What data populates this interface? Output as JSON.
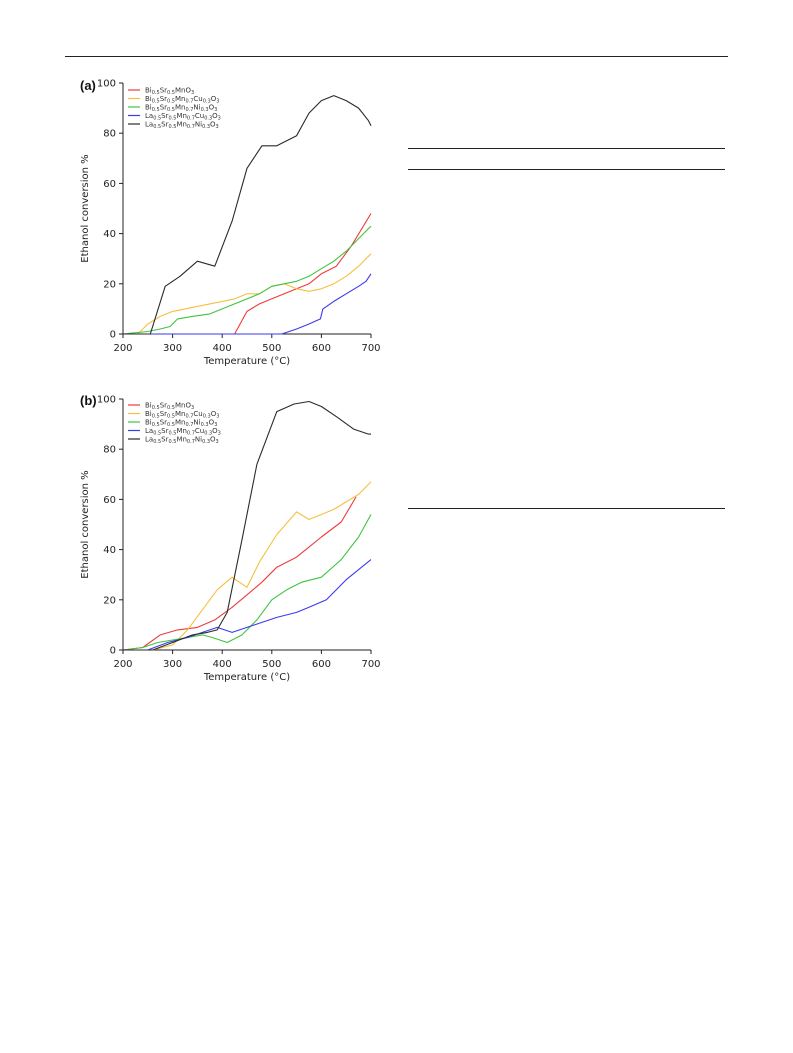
{
  "page": {
    "rules": [
      {
        "name": "header-rule"
      },
      {
        "name": "table-top-rule"
      },
      {
        "name": "table-header-rule"
      },
      {
        "name": "table-bottom-rule"
      }
    ]
  },
  "chart_data": [
    {
      "type": "line",
      "panel": "(a)",
      "xlabel": "Temperature (°C)",
      "ylabel": "Ethanol conversion %",
      "xlim": [
        200,
        700
      ],
      "ylim": [
        0,
        100
      ],
      "xticks": [
        200,
        300,
        400,
        500,
        600,
        700
      ],
      "yticks": [
        0,
        20,
        40,
        60,
        80,
        100
      ],
      "grid": false,
      "legend_position": "top-left",
      "series": [
        {
          "name": "Bi0.5Sr0.5MnO3",
          "legend": [
            [
              "Bi",
              ""
            ],
            [
              "0.5",
              "s"
            ],
            [
              "Sr",
              ""
            ],
            [
              "0.5",
              "s"
            ],
            [
              "MnO",
              ""
            ],
            [
              "3",
              "s"
            ]
          ],
          "color": "#ee3b3b",
          "x": [
            200,
            300,
            425,
            450,
            475,
            525,
            575,
            600,
            630,
            660,
            700
          ],
          "y": [
            0,
            0,
            0,
            9,
            12,
            16,
            20,
            24,
            27,
            35,
            48
          ]
        },
        {
          "name": "Bi0.5Sr0.5Mn0.7Cu0.3O3",
          "legend": [
            [
              "Bi",
              ""
            ],
            [
              "0.5",
              "s"
            ],
            [
              "Sr",
              ""
            ],
            [
              "0.5",
              "s"
            ],
            [
              "Mn",
              ""
            ],
            [
              "0.7",
              "s"
            ],
            [
              "Cu",
              ""
            ],
            [
              "0.3",
              "s"
            ],
            [
              "O",
              ""
            ],
            [
              "3",
              "s"
            ]
          ],
          "color": "#f5c040",
          "x": [
            200,
            230,
            250,
            275,
            300,
            325,
            350,
            375,
            400,
            425,
            450,
            475,
            500,
            525,
            550,
            575,
            600,
            625,
            650,
            675,
            700
          ],
          "y": [
            0,
            0,
            4,
            7,
            9,
            10,
            11,
            12,
            13,
            14,
            16,
            16,
            19,
            20,
            18,
            17,
            18,
            20,
            23,
            27,
            32
          ]
        },
        {
          "name": "Bi0.5Sr0.5Mn0.7Ni0.3O3",
          "legend": [
            [
              "Bi",
              ""
            ],
            [
              "0.5",
              "s"
            ],
            [
              "Sr",
              ""
            ],
            [
              "0.5",
              "s"
            ],
            [
              "Mn",
              ""
            ],
            [
              "0.7",
              "s"
            ],
            [
              "Ni",
              ""
            ],
            [
              "0.3",
              "s"
            ],
            [
              "O",
              ""
            ],
            [
              "3",
              "s"
            ]
          ],
          "color": "#3fc43f",
          "x": [
            200,
            250,
            275,
            295,
            310,
            340,
            375,
            400,
            425,
            450,
            475,
            500,
            525,
            550,
            575,
            600,
            625,
            650,
            675,
            700
          ],
          "y": [
            0,
            1,
            2,
            3,
            6,
            7,
            8,
            10,
            12,
            14,
            16,
            19,
            20,
            21,
            23,
            26,
            29,
            33,
            38,
            43
          ]
        },
        {
          "name": "La0.5Sr0.5Mn0.7Cu0.3O3",
          "legend": [
            [
              "La",
              ""
            ],
            [
              "0.5",
              "s"
            ],
            [
              "Sr",
              ""
            ],
            [
              "0.5",
              "s"
            ],
            [
              "Mn",
              ""
            ],
            [
              "0.7",
              "s"
            ],
            [
              "Cu",
              ""
            ],
            [
              "0.3",
              "s"
            ],
            [
              "O",
              ""
            ],
            [
              "3",
              "s"
            ]
          ],
          "color": "#3a3af0",
          "x": [
            200,
            520,
            550,
            575,
            598,
            603,
            625,
            650,
            675,
            690,
            700
          ],
          "y": [
            0,
            0,
            2,
            4,
            6,
            10,
            13,
            16,
            19,
            21,
            24
          ]
        },
        {
          "name": "La0.5Sr0.5Mn0.7Ni0.3O3",
          "legend": [
            [
              "La",
              ""
            ],
            [
              "0.5",
              "s"
            ],
            [
              "Sr",
              ""
            ],
            [
              "0.5",
              "s"
            ],
            [
              "Mn",
              ""
            ],
            [
              "0.7",
              "s"
            ],
            [
              "Ni",
              ""
            ],
            [
              "0.3",
              "s"
            ],
            [
              "O",
              ""
            ],
            [
              "3",
              "s"
            ]
          ],
          "color": "#2a2a2a",
          "x": [
            200,
            255,
            285,
            315,
            350,
            385,
            420,
            450,
            480,
            510,
            550,
            575,
            600,
            625,
            650,
            675,
            695,
            700
          ],
          "y": [
            0,
            0,
            19,
            23,
            29,
            27,
            45,
            66,
            75,
            75,
            79,
            88,
            93,
            95,
            93,
            90,
            85,
            83
          ]
        }
      ]
    },
    {
      "type": "line",
      "panel": "(b)",
      "xlabel": "Temperature (°C)",
      "ylabel": "Ethanol conversion %",
      "xlim": [
        200,
        700
      ],
      "ylim": [
        0,
        100
      ],
      "xticks": [
        200,
        300,
        400,
        500,
        600,
        700
      ],
      "yticks": [
        0,
        20,
        40,
        60,
        80,
        100
      ],
      "grid": false,
      "legend_position": "top-left",
      "series": [
        {
          "name": "Bi0.5Sr0.5MnO3",
          "legend": [
            [
              "Bi",
              ""
            ],
            [
              "0.5",
              "s"
            ],
            [
              "Sr",
              ""
            ],
            [
              "0.5",
              "s"
            ],
            [
              "MnO",
              ""
            ],
            [
              "3",
              "s"
            ]
          ],
          "color": "#ee3b3b",
          "x": [
            200,
            240,
            275,
            310,
            350,
            385,
            420,
            450,
            480,
            510,
            550,
            575,
            600,
            640,
            670
          ],
          "y": [
            0,
            1,
            6,
            8,
            9,
            12,
            17,
            22,
            27,
            33,
            37,
            41,
            45,
            51,
            61
          ]
        },
        {
          "name": "Bi0.5Sr0.5Mn0.7Cu0.3O3",
          "legend": [
            [
              "Bi",
              ""
            ],
            [
              "0.5",
              "s"
            ],
            [
              "Sr",
              ""
            ],
            [
              "0.5",
              "s"
            ],
            [
              "Mn",
              ""
            ],
            [
              "0.7",
              "s"
            ],
            [
              "Cu",
              ""
            ],
            [
              "0.3",
              "s"
            ],
            [
              "O",
              ""
            ],
            [
              "3",
              "s"
            ]
          ],
          "color": "#f5c040",
          "x": [
            200,
            260,
            300,
            330,
            360,
            390,
            420,
            450,
            475,
            510,
            550,
            575,
            600,
            625,
            650,
            675,
            700
          ],
          "y": [
            0,
            0,
            2,
            8,
            16,
            24,
            29,
            25,
            35,
            46,
            55,
            52,
            54,
            56,
            59,
            62,
            67
          ]
        },
        {
          "name": "Bi0.5Sr0.5Mn0.7Ni0.3O3",
          "legend": [
            [
              "Bi",
              ""
            ],
            [
              "0.5",
              "s"
            ],
            [
              "Sr",
              ""
            ],
            [
              "0.5",
              "s"
            ],
            [
              "Mn",
              ""
            ],
            [
              "0.7",
              "s"
            ],
            [
              "Ni",
              ""
            ],
            [
              "0.3",
              "s"
            ],
            [
              "O",
              ""
            ],
            [
              "3",
              "s"
            ]
          ],
          "color": "#3fc43f",
          "x": [
            200,
            240,
            270,
            300,
            330,
            360,
            380,
            410,
            440,
            470,
            500,
            530,
            560,
            600,
            640,
            675,
            700
          ],
          "y": [
            0,
            1,
            3,
            4,
            5,
            6,
            5,
            3,
            6,
            12,
            20,
            24,
            27,
            29,
            36,
            45,
            54
          ]
        },
        {
          "name": "La0.5Sr0.5Mn0.7Cu0.3O3",
          "legend": [
            [
              "La",
              ""
            ],
            [
              "0.5",
              "s"
            ],
            [
              "Sr",
              ""
            ],
            [
              "0.5",
              "s"
            ],
            [
              "Mn",
              ""
            ],
            [
              "0.7",
              "s"
            ],
            [
              "Cu",
              ""
            ],
            [
              "0.3",
              "s"
            ],
            [
              "O",
              ""
            ],
            [
              "3",
              "s"
            ]
          ],
          "color": "#3a3af0",
          "x": [
            200,
            250,
            290,
            330,
            360,
            390,
            420,
            450,
            480,
            510,
            550,
            575,
            610,
            650,
            700
          ],
          "y": [
            0,
            0,
            3,
            5,
            7,
            9,
            7,
            9,
            11,
            13,
            15,
            17,
            20,
            28,
            36
          ]
        },
        {
          "name": "La0.5Sr0.5Mn0.7Ni0.3O3",
          "legend": [
            [
              "La",
              ""
            ],
            [
              "0.5",
              "s"
            ],
            [
              "Sr",
              ""
            ],
            [
              "0.5",
              "s"
            ],
            [
              "Mn",
              ""
            ],
            [
              "0.7",
              "s"
            ],
            [
              "Ni",
              ""
            ],
            [
              "0.3",
              "s"
            ],
            [
              "O",
              ""
            ],
            [
              "3",
              "s"
            ]
          ],
          "color": "#2a2a2a",
          "x": [
            200,
            260,
            300,
            340,
            370,
            390,
            410,
            440,
            470,
            510,
            545,
            575,
            600,
            630,
            665,
            695,
            700
          ],
          "y": [
            0,
            0,
            3,
            6,
            7,
            8,
            15,
            44,
            74,
            95,
            98,
            99,
            97,
            93,
            88,
            86,
            86
          ]
        }
      ]
    }
  ]
}
